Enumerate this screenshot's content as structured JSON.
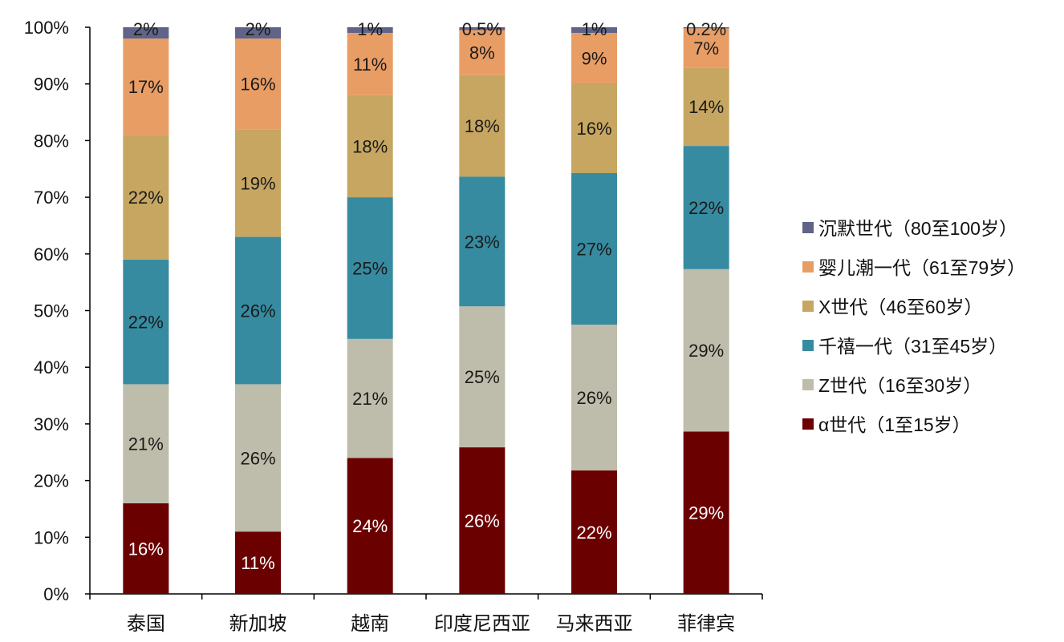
{
  "chart_data": {
    "type": "bar",
    "stacked": true,
    "percent": true,
    "categories": [
      "泰国",
      "新加坡",
      "越南",
      "印度尼西亚",
      "马来西亚",
      "菲律宾"
    ],
    "ylim": [
      0,
      100
    ],
    "yticks": [
      "0%",
      "10%",
      "20%",
      "30%",
      "40%",
      "50%",
      "60%",
      "70%",
      "80%",
      "90%",
      "100%"
    ],
    "grid": false,
    "legend_position": "right",
    "series": [
      {
        "name": "α世代（1至15岁）",
        "color": "#6b0000",
        "label_color": "#ffffff",
        "values": [
          16,
          11,
          24,
          26,
          22,
          29
        ],
        "labels": [
          "16%",
          "11%",
          "24%",
          "26%",
          "22%",
          "29%"
        ]
      },
      {
        "name": "Z世代（16至30岁）",
        "color": "#bebcaa",
        "label_color": "#1a1a1a",
        "values": [
          21,
          26,
          21,
          25,
          26,
          29
        ],
        "labels": [
          "21%",
          "26%",
          "21%",
          "25%",
          "26%",
          "29%"
        ]
      },
      {
        "name": "千禧一代（31至45岁）",
        "color": "#378ba0",
        "label_color": "#1a1a1a",
        "values": [
          22,
          26,
          25,
          23,
          27,
          22
        ],
        "labels": [
          "22%",
          "26%",
          "25%",
          "23%",
          "27%",
          "22%"
        ]
      },
      {
        "name": "X世代（46至60岁）",
        "color": "#c6a661",
        "label_color": "#1a1a1a",
        "values": [
          22,
          19,
          18,
          18,
          16,
          14
        ],
        "labels": [
          "22%",
          "19%",
          "18%",
          "18%",
          "16%",
          "14%"
        ]
      },
      {
        "name": "婴儿潮一代（61至79岁）",
        "color": "#e89d65",
        "label_color": "#1a1a1a",
        "values": [
          17,
          16,
          11,
          8,
          9,
          7
        ],
        "labels": [
          "17%",
          "16%",
          "11%",
          "8%",
          "9%",
          "7%"
        ]
      },
      {
        "name": "沉默世代（80至100岁）",
        "color": "#5f6488",
        "label_color": "#1a1a1a",
        "values": [
          2,
          2,
          1,
          0.5,
          1,
          0.2
        ],
        "labels": [
          "2%",
          "2%",
          "1%",
          "0.5%",
          "1%",
          "0.2%"
        ]
      }
    ],
    "legend_order": [
      5,
      4,
      3,
      2,
      1,
      0
    ]
  }
}
